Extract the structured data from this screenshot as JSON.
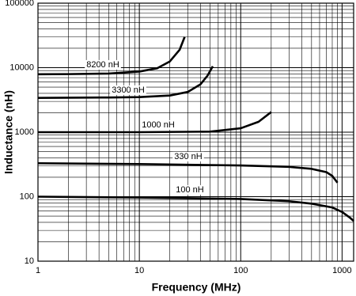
{
  "chart_data": {
    "type": "line",
    "x_label": "Frequency (MHz)",
    "y_label": "Inductance (nH)",
    "x_log": true,
    "y_log": true,
    "grid": true,
    "minor_grid": true,
    "xlim": [
      1,
      1300
    ],
    "ylim": [
      10,
      100000
    ],
    "xticks": [
      1,
      10,
      100,
      1000
    ],
    "yticks": [
      10,
      100,
      1000,
      10000,
      100000
    ],
    "series": [
      {
        "name": "8200 nH",
        "color": "#000000",
        "x": [
          1,
          2,
          5,
          10,
          15,
          20,
          25,
          28
        ],
        "values": [
          7900,
          7950,
          8100,
          8700,
          9800,
          12500,
          19000,
          30000
        ]
      },
      {
        "name": "3300 nH",
        "color": "#000000",
        "x": [
          1,
          5,
          10,
          20,
          30,
          40,
          47,
          53
        ],
        "values": [
          3400,
          3450,
          3500,
          3700,
          4200,
          5500,
          7500,
          10500
        ]
      },
      {
        "name": "1000 nH",
        "color": "#000000",
        "x": [
          1,
          10,
          50,
          100,
          150,
          200
        ],
        "values": [
          1000,
          1000,
          1020,
          1150,
          1450,
          2050
        ]
      },
      {
        "name": "330 nH",
        "color": "#000000",
        "x": [
          1,
          10,
          100,
          300,
          500,
          700,
          800,
          900
        ],
        "values": [
          330,
          320,
          305,
          290,
          270,
          240,
          210,
          165
        ]
      },
      {
        "name": "100 nH",
        "color": "#000000",
        "x": [
          1,
          10,
          100,
          300,
          500,
          800,
          1000,
          1200,
          1300
        ],
        "values": [
          100,
          97,
          92,
          85,
          78,
          68,
          58,
          47,
          42
        ]
      }
    ]
  }
}
